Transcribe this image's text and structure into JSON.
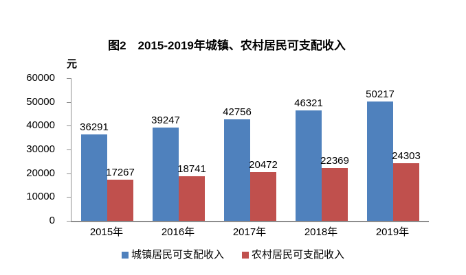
{
  "chart_data": {
    "type": "bar",
    "title": "图2　2015-2019年城镇、农村居民可支配收入",
    "unit_label": "元",
    "categories": [
      "2015年",
      "2016年",
      "2017年",
      "2018年",
      "2019年"
    ],
    "series": [
      {
        "name": "城镇居民可支配收入",
        "key": "urban",
        "color": "#4F81BD",
        "values": [
          36291,
          39247,
          42756,
          46321,
          50217
        ]
      },
      {
        "name": "农村居民可支配收入",
        "key": "rural",
        "color": "#C0504D",
        "values": [
          17267,
          18741,
          20472,
          22369,
          24303
        ]
      }
    ],
    "xlabel": "",
    "ylabel": "元",
    "ylim": [
      0,
      60000
    ],
    "ytick_step": 10000,
    "ytick_labels": [
      "0",
      "10000",
      "20000",
      "30000",
      "40000",
      "50000",
      "60000"
    ],
    "grid": false,
    "data_labels": true,
    "legend_position": "bottom",
    "axis_color": "#8C8C8C",
    "text_color": "#000000",
    "background_color": "#FFFFFF"
  }
}
